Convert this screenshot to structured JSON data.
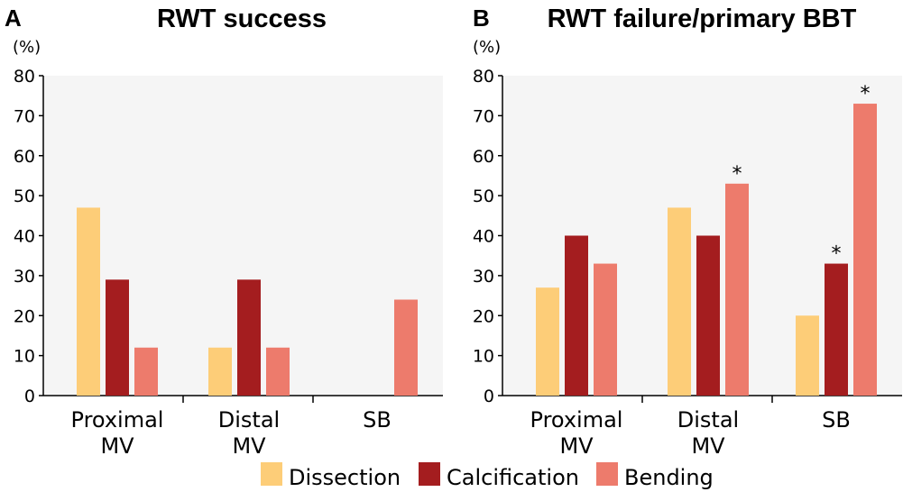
{
  "chart_data": [
    {
      "type": "bar",
      "panel": "A",
      "title": "RWT success",
      "ylabel": "(%)",
      "ylim": [
        0,
        80
      ],
      "yticks": [
        0,
        10,
        20,
        30,
        40,
        50,
        60,
        70,
        80
      ],
      "categories": [
        [
          "Proximal",
          "MV"
        ],
        [
          "Distal",
          "MV"
        ],
        [
          "SB"
        ]
      ],
      "series": [
        {
          "name": "Dissection",
          "color": "#FDCD78",
          "values": [
            47,
            12,
            0
          ],
          "annotations": [
            "",
            "",
            ""
          ]
        },
        {
          "name": "Calcification",
          "color": "#A41D1F",
          "values": [
            29,
            29,
            0
          ],
          "annotations": [
            "",
            "",
            ""
          ]
        },
        {
          "name": "Bending",
          "color": "#ED7B6C",
          "values": [
            12,
            12,
            24
          ],
          "annotations": [
            "",
            "",
            ""
          ]
        }
      ],
      "grid": false,
      "background": "#F5F5F5"
    },
    {
      "type": "bar",
      "panel": "B",
      "title": "RWT failure/primary BBT",
      "ylabel": "(%)",
      "ylim": [
        0,
        80
      ],
      "yticks": [
        0,
        10,
        20,
        30,
        40,
        50,
        60,
        70,
        80
      ],
      "categories": [
        [
          "Proximal",
          "MV"
        ],
        [
          "Distal",
          "MV"
        ],
        [
          "SB"
        ]
      ],
      "series": [
        {
          "name": "Dissection",
          "color": "#FDCD78",
          "values": [
            27,
            47,
            20
          ],
          "annotations": [
            "",
            "",
            ""
          ]
        },
        {
          "name": "Calcification",
          "color": "#A41D1F",
          "values": [
            40,
            40,
            33
          ],
          "annotations": [
            "",
            "",
            "*"
          ]
        },
        {
          "name": "Bending",
          "color": "#ED7B6C",
          "values": [
            33,
            53,
            73
          ],
          "annotations": [
            "",
            "*",
            "*"
          ]
        }
      ],
      "grid": false,
      "background": "#F5F5F5"
    }
  ],
  "legend": {
    "placement": "bottom-center",
    "items": [
      {
        "label": "Dissection",
        "color": "#FDCD78"
      },
      {
        "label": "Calcification",
        "color": "#A41D1F"
      },
      {
        "label": "Bending",
        "color": "#ED7B6C"
      }
    ]
  }
}
